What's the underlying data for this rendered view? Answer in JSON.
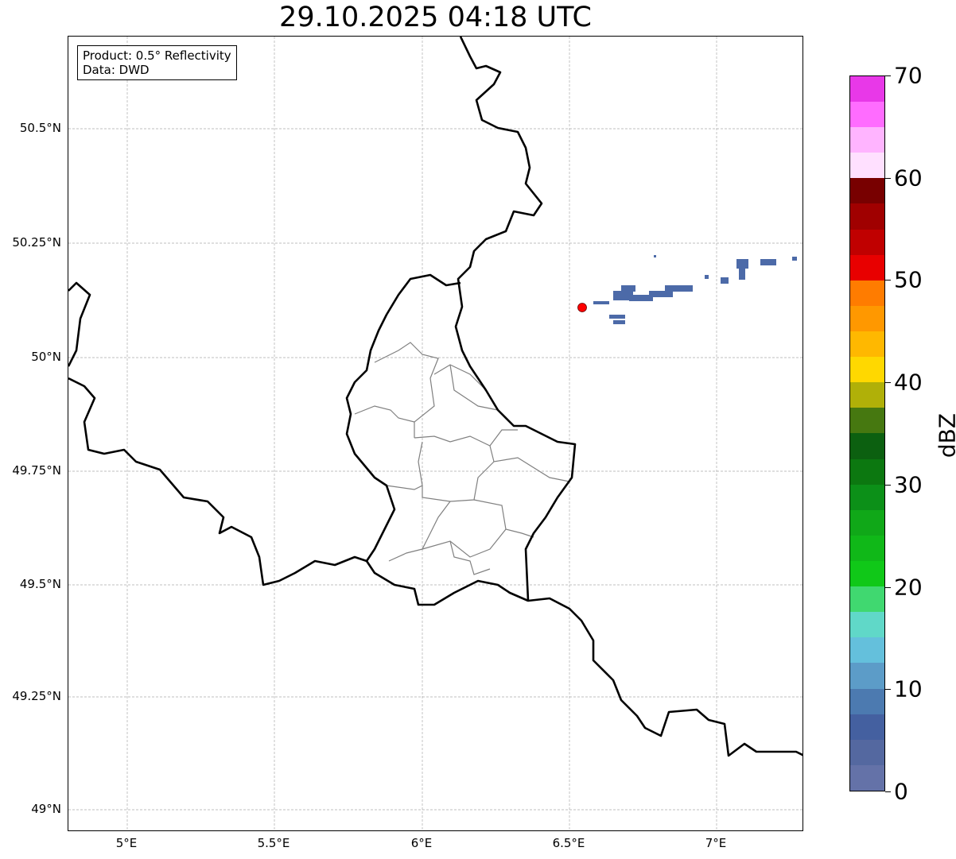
{
  "title": "29.10.2025 04:18 UTC",
  "legend": {
    "product": "Product: 0.5° Reflectivity",
    "data": "Data: DWD"
  },
  "lat_ticks": [
    "50.5°N",
    "50.25°N",
    "50°N",
    "49.75°N",
    "49.5°N",
    "49.25°N",
    "49°N"
  ],
  "lon_ticks": [
    "5°E",
    "5.5°E",
    "6°E",
    "6.5°E",
    "7°E"
  ],
  "colorbar": {
    "label": "dBZ",
    "ticks": [
      "0",
      "10",
      "20",
      "30",
      "40",
      "50",
      "60",
      "70"
    ],
    "min": 0,
    "max": 70,
    "step": 2.5,
    "colors": [
      "#6472a8",
      "#5468a0",
      "#4460a0",
      "#4c7ab0",
      "#5c9cc8",
      "#64c0dc",
      "#60d8c8",
      "#40d870",
      "#10c818",
      "#10b818",
      "#10a818",
      "#0c9018",
      "#0c7810",
      "#0c6010",
      "#467810",
      "#b0b008",
      "#ffd800",
      "#ffb800",
      "#ff9800",
      "#ff7c00",
      "#e80000",
      "#c00000",
      "#a00000",
      "#780000",
      "#ffe0ff",
      "#ffb4ff",
      "#ff6cff",
      "#e838e8"
    ]
  },
  "radar_site": {
    "color": "#ff0000"
  }
}
